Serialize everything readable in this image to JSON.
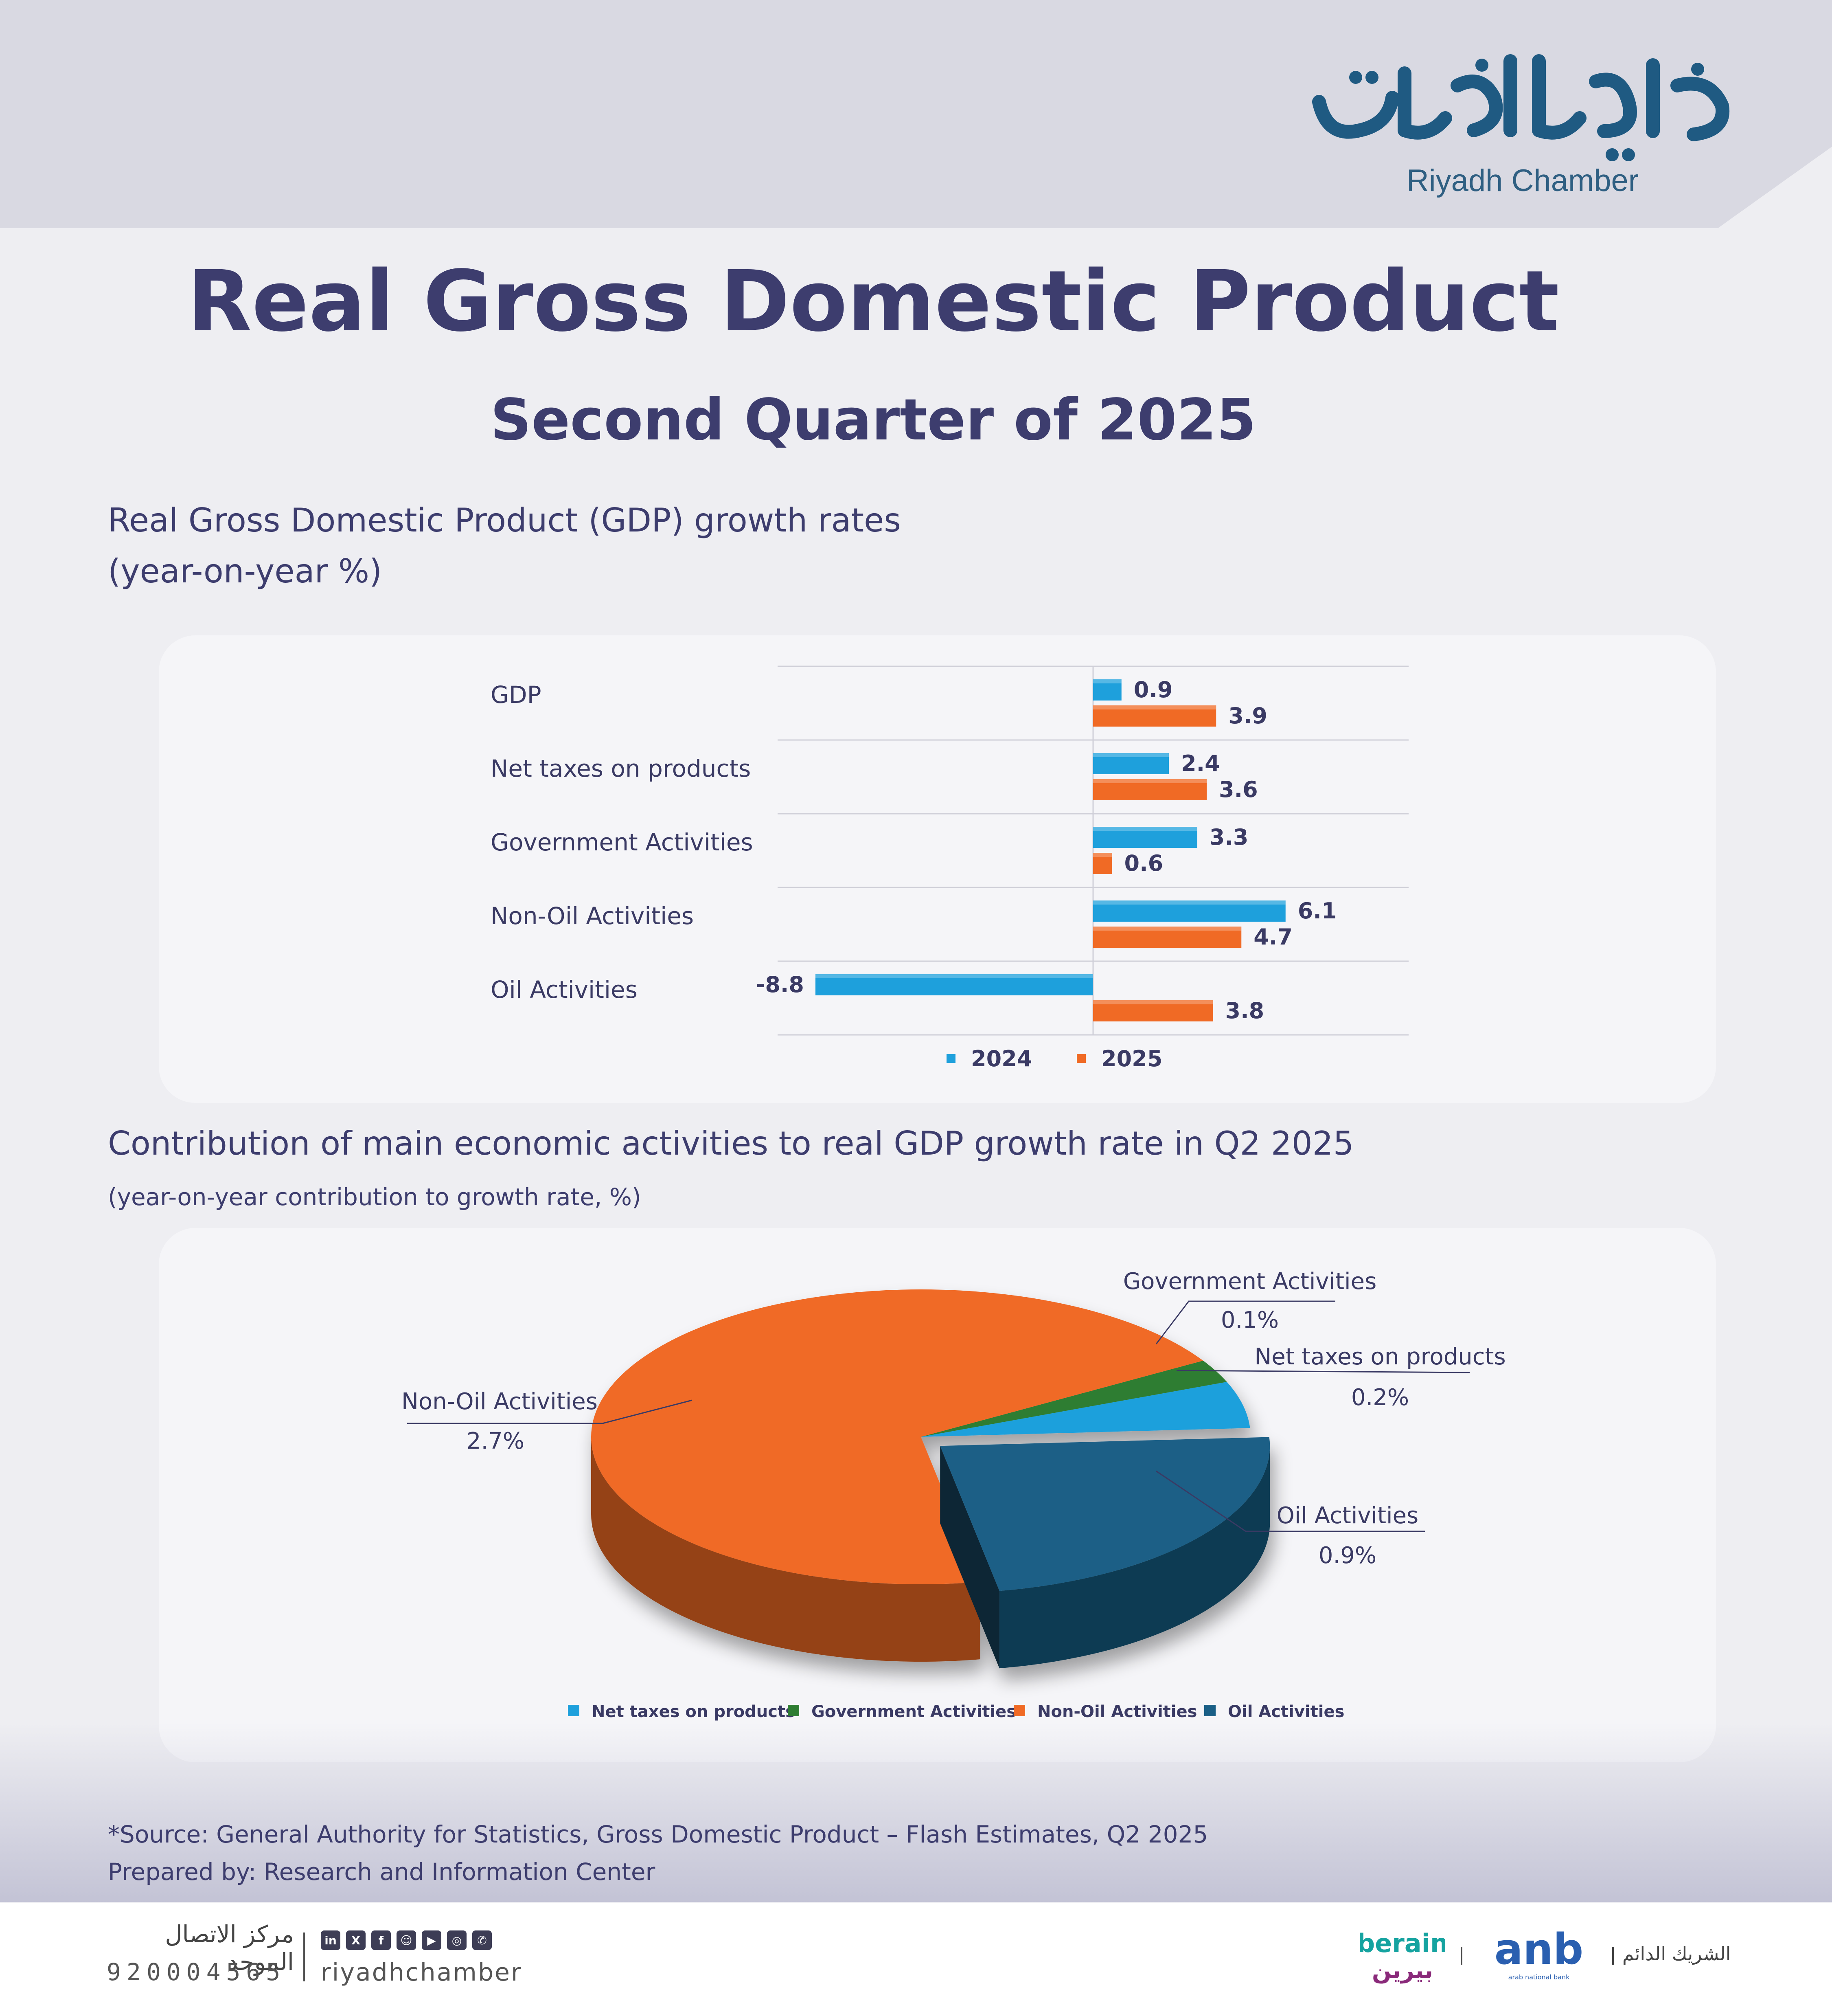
{
  "brand": {
    "name_en": "Riyadh Chamber",
    "name_ar": "غرفة الرياض",
    "colors": {
      "navy": "#3d3d6e",
      "logo_blue": "#1f5a82",
      "series_2024": "#1ea0dc",
      "series_2025": "#f06a25"
    }
  },
  "title": "Real Gross Domestic Product",
  "subtitle": "Second Quarter of 2025",
  "chart_data": [
    {
      "type": "bar",
      "orientation": "horizontal",
      "title": "Real Gross Domestic Product (GDP) growth rates",
      "subtitle": "(year-on-year %)",
      "categories": [
        "GDP",
        "Net taxes on products",
        "Government Activities",
        "Non-Oil Activities",
        "Oil Activities"
      ],
      "series": [
        {
          "name": "2024",
          "color": "#1ea0dc",
          "values": [
            0.9,
            2.4,
            3.3,
            6.1,
            -8.8
          ],
          "labels": [
            "0.9",
            "2.4",
            "3.3",
            "6.1",
            "-8.8"
          ]
        },
        {
          "name": "2025",
          "color": "#f06a25",
          "values": [
            3.9,
            3.6,
            0.6,
            4.7,
            3.8
          ],
          "labels": [
            "3.9",
            "3.6",
            "0.6",
            "4.7",
            "3.8"
          ]
        }
      ],
      "xlim": [
        -10,
        10
      ],
      "legend": "bottom",
      "grid": "horizontal separators"
    },
    {
      "type": "pie",
      "title": "Contribution of main economic activities to real GDP growth rate in Q2 2025",
      "subtitle": "(year-on-year contribution to growth rate, %)",
      "categories": [
        "Net taxes on products",
        "Government Activities",
        "Non-Oil Activities",
        "Oil Activities"
      ],
      "values": [
        0.2,
        0.1,
        2.7,
        0.9
      ],
      "labels": [
        "0.2%",
        "0.1%",
        "2.7%",
        "0.9%"
      ],
      "colors": [
        "#1ea0dc",
        "#2e7d32",
        "#f06a25",
        "#1a5f86"
      ],
      "exploded": "Oil Activities",
      "style": "3d",
      "legend": "bottom"
    }
  ],
  "source": "*Source: General Authority for Statistics, Gross Domestic Product – Flash Estimates, Q2 2025",
  "prepared_by": "Prepared by: Research and Information Center",
  "footer": {
    "hotline_label_ar": "مركز الاتصال الموحد",
    "hotline_number": "920004565",
    "social_icons": [
      "linkedin-icon",
      "x-icon",
      "facebook-icon",
      "snapchat-icon",
      "youtube-icon",
      "instagram-icon",
      "whatsapp-icon"
    ],
    "handle": "riyadhchamber",
    "partner_label_ar": "الشريك الدائم",
    "partner_anb": "anb",
    "partner_anb_sub": "arab national bank",
    "partner_berain": "berain",
    "partner_berain_ar": "بيرين"
  }
}
